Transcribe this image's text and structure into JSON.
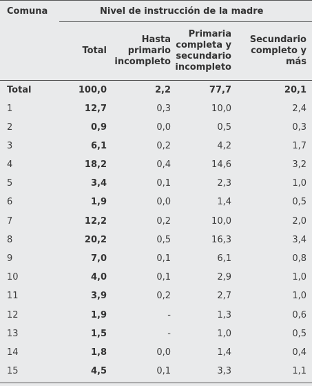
{
  "header": {
    "comuna": "Comuna",
    "group": "Nivel de instrucción de la madre",
    "total": "Total",
    "hasta": [
      "Hasta",
      "primario",
      "incompleto"
    ],
    "primaria": [
      "Primaria",
      "completa y",
      "secundario",
      "incompleto"
    ],
    "secundario": [
      "Secundario",
      "completo y",
      "más"
    ]
  },
  "rows": [
    {
      "label": "Total",
      "total": "100,0",
      "hasta": "2,2",
      "primaria": "77,7",
      "secundario": "20,1",
      "bold": true
    },
    {
      "label": "1",
      "total": "12,7",
      "hasta": "0,3",
      "primaria": "10,0",
      "secundario": "2,4"
    },
    {
      "label": "2",
      "total": "0,9",
      "hasta": "0,0",
      "primaria": "0,5",
      "secundario": "0,3"
    },
    {
      "label": "3",
      "total": "6,1",
      "hasta": "0,2",
      "primaria": "4,2",
      "secundario": "1,7"
    },
    {
      "label": "4",
      "total": "18,2",
      "hasta": "0,4",
      "primaria": "14,6",
      "secundario": "3,2"
    },
    {
      "label": "5",
      "total": "3,4",
      "hasta": "0,1",
      "primaria": "2,3",
      "secundario": "1,0"
    },
    {
      "label": "6",
      "total": "1,9",
      "hasta": "0,0",
      "primaria": "1,4",
      "secundario": "0,5"
    },
    {
      "label": "7",
      "total": "12,2",
      "hasta": "0,2",
      "primaria": "10,0",
      "secundario": "2,0"
    },
    {
      "label": "8",
      "total": "20,2",
      "hasta": "0,5",
      "primaria": "16,3",
      "secundario": "3,4"
    },
    {
      "label": "9",
      "total": "7,0",
      "hasta": "0,1",
      "primaria": "6,1",
      "secundario": "0,8"
    },
    {
      "label": "10",
      "total": "4,0",
      "hasta": "0,1",
      "primaria": "2,9",
      "secundario": "1,0"
    },
    {
      "label": "11",
      "total": "3,9",
      "hasta": "0,2",
      "primaria": "2,7",
      "secundario": "1,0"
    },
    {
      "label": "12",
      "total": "1,9",
      "hasta": "-",
      "primaria": "1,3",
      "secundario": "0,6"
    },
    {
      "label": "13",
      "total": "1,5",
      "hasta": "-",
      "primaria": "1,0",
      "secundario": "0,5"
    },
    {
      "label": "14",
      "total": "1,8",
      "hasta": "0,0",
      "primaria": "1,4",
      "secundario": "0,4"
    },
    {
      "label": "15",
      "total": "4,5",
      "hasta": "0,1",
      "primaria": "3,3",
      "secundario": "1,1"
    }
  ]
}
